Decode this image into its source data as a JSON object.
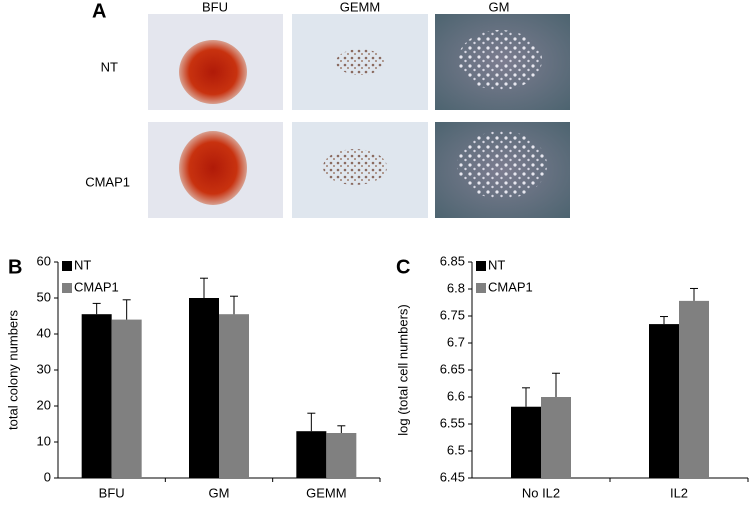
{
  "panel_a": {
    "label": "A",
    "columns": [
      "BFU",
      "GEMM",
      "GM"
    ],
    "rows": [
      "NT",
      "CMAP1"
    ]
  },
  "chart_data": [
    {
      "type": "bar",
      "panel": "B",
      "ylabel": "total colony numbers",
      "categories": [
        "BFU",
        "GM",
        "GEMM"
      ],
      "series": [
        {
          "name": "NT",
          "color": "#000000",
          "values": [
            45.5,
            50,
            13
          ],
          "errors": [
            3,
            5.5,
            5
          ]
        },
        {
          "name": "CMAP1",
          "color": "#808080",
          "values": [
            44,
            45.5,
            12.5
          ],
          "errors": [
            5.5,
            5,
            2
          ]
        }
      ],
      "ylim": [
        0,
        60
      ],
      "yticks": [
        0,
        10,
        20,
        30,
        40,
        50,
        60
      ],
      "legend": "upper left",
      "grid": false
    },
    {
      "type": "bar",
      "panel": "C",
      "ylabel": "log (total cell numbers)",
      "categories": [
        "No IL2",
        "IL2"
      ],
      "series": [
        {
          "name": "NT",
          "color": "#000000",
          "values": [
            6.582,
            6.735
          ],
          "errors": [
            0.035,
            0.014
          ]
        },
        {
          "name": "CMAP1",
          "color": "#808080",
          "values": [
            6.6,
            6.778
          ],
          "errors": [
            0.044,
            0.023
          ]
        }
      ],
      "ylim": [
        6.45,
        6.85
      ],
      "yticks": [
        6.45,
        6.5,
        6.55,
        6.6,
        6.65,
        6.7,
        6.75,
        6.8,
        6.85
      ],
      "legend": "upper left",
      "grid": false
    }
  ]
}
